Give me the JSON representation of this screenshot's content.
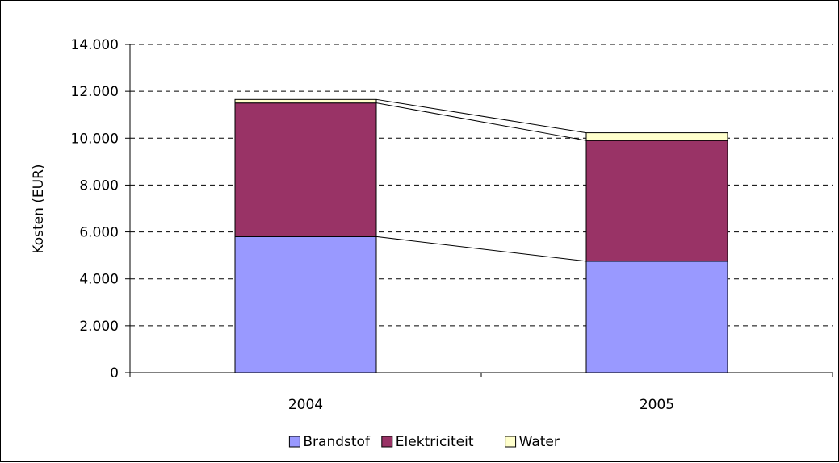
{
  "chart_data": {
    "type": "bar",
    "stacked": true,
    "categories": [
      "2004",
      "2005"
    ],
    "series": [
      {
        "name": "Brandstof",
        "values": [
          5800,
          4750
        ],
        "color": "#9999ff"
      },
      {
        "name": "Elektriciteit",
        "values": [
          5700,
          5150
        ],
        "color": "#993366"
      },
      {
        "name": "Water",
        "values": [
          150,
          330
        ],
        "color": "#ffffcc"
      }
    ],
    "y_ticks": [
      "0",
      "2.000",
      "4.000",
      "6.000",
      "8.000",
      "10.000",
      "12.000",
      "14.000"
    ],
    "ylim": [
      0,
      14000
    ],
    "ylabel": "Kosten (EUR)",
    "xlabel": "",
    "title": "",
    "grid": "dashed horizontal",
    "series_lines": true,
    "legend_position": "bottom"
  }
}
